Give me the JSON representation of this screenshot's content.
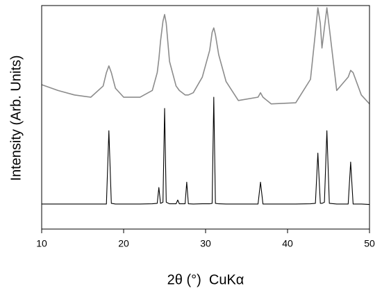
{
  "chart_data": {
    "type": "line",
    "x_label": "2θ (°)  CuKα",
    "y_label": "Intensity (Arb. Units)",
    "x": [
      10,
      12,
      14,
      16,
      17.5,
      17.9,
      18.2,
      18.5,
      19,
      20,
      22,
      23.5,
      24.1,
      24.3,
      24.5,
      24.8,
      25.0,
      25.2,
      25.6,
      26.4,
      26.6,
      26.8,
      27.5,
      27.7,
      27.9,
      28.5,
      29.6,
      30.5,
      30.8,
      31.0,
      31.2,
      31.6,
      32.5,
      34,
      36.4,
      36.7,
      37,
      38,
      41,
      42.8,
      43.4,
      43.7,
      44.0,
      44.2,
      44.5,
      44.8,
      45.1,
      46,
      47.4,
      47.7,
      48.0,
      49,
      50
    ],
    "series": [
      {
        "color": "#8c8c8c",
        "values": [
          64.6,
          62,
          60,
          59,
          64,
          70,
          73,
          70,
          63,
          59,
          59,
          62,
          70,
          76,
          84,
          93,
          96,
          92,
          75,
          64,
          63,
          62,
          60,
          60,
          60,
          61,
          68,
          80,
          88,
          90,
          87,
          78,
          66,
          57.5,
          59,
          61,
          59,
          56,
          56.5,
          67,
          88,
          99,
          92,
          81,
          90,
          99,
          90,
          62,
          68,
          71,
          70,
          60,
          56
        ]
      },
      {
        "color": "#000000",
        "values": [
          11.2,
          11.2,
          11.2,
          11.2,
          11.2,
          11.2,
          44,
          11.5,
          11.2,
          11.2,
          11.2,
          11.3,
          11.5,
          18.6,
          11.5,
          12,
          54,
          12,
          11.3,
          11.3,
          13,
          11.3,
          11.3,
          21,
          11.3,
          11.2,
          11.3,
          11.3,
          11.5,
          59,
          11.5,
          11.3,
          11.2,
          11.2,
          11.2,
          21,
          11.2,
          11.2,
          11.2,
          11.3,
          11.5,
          34,
          11.5,
          11.5,
          12,
          44,
          11.5,
          11.2,
          11.2,
          30,
          11.2,
          11.2,
          11
        ]
      }
    ],
    "xlim": [
      10,
      50
    ],
    "ylim": [
      0,
      100
    ],
    "xticks": [
      10,
      20,
      30,
      40,
      50
    ]
  }
}
